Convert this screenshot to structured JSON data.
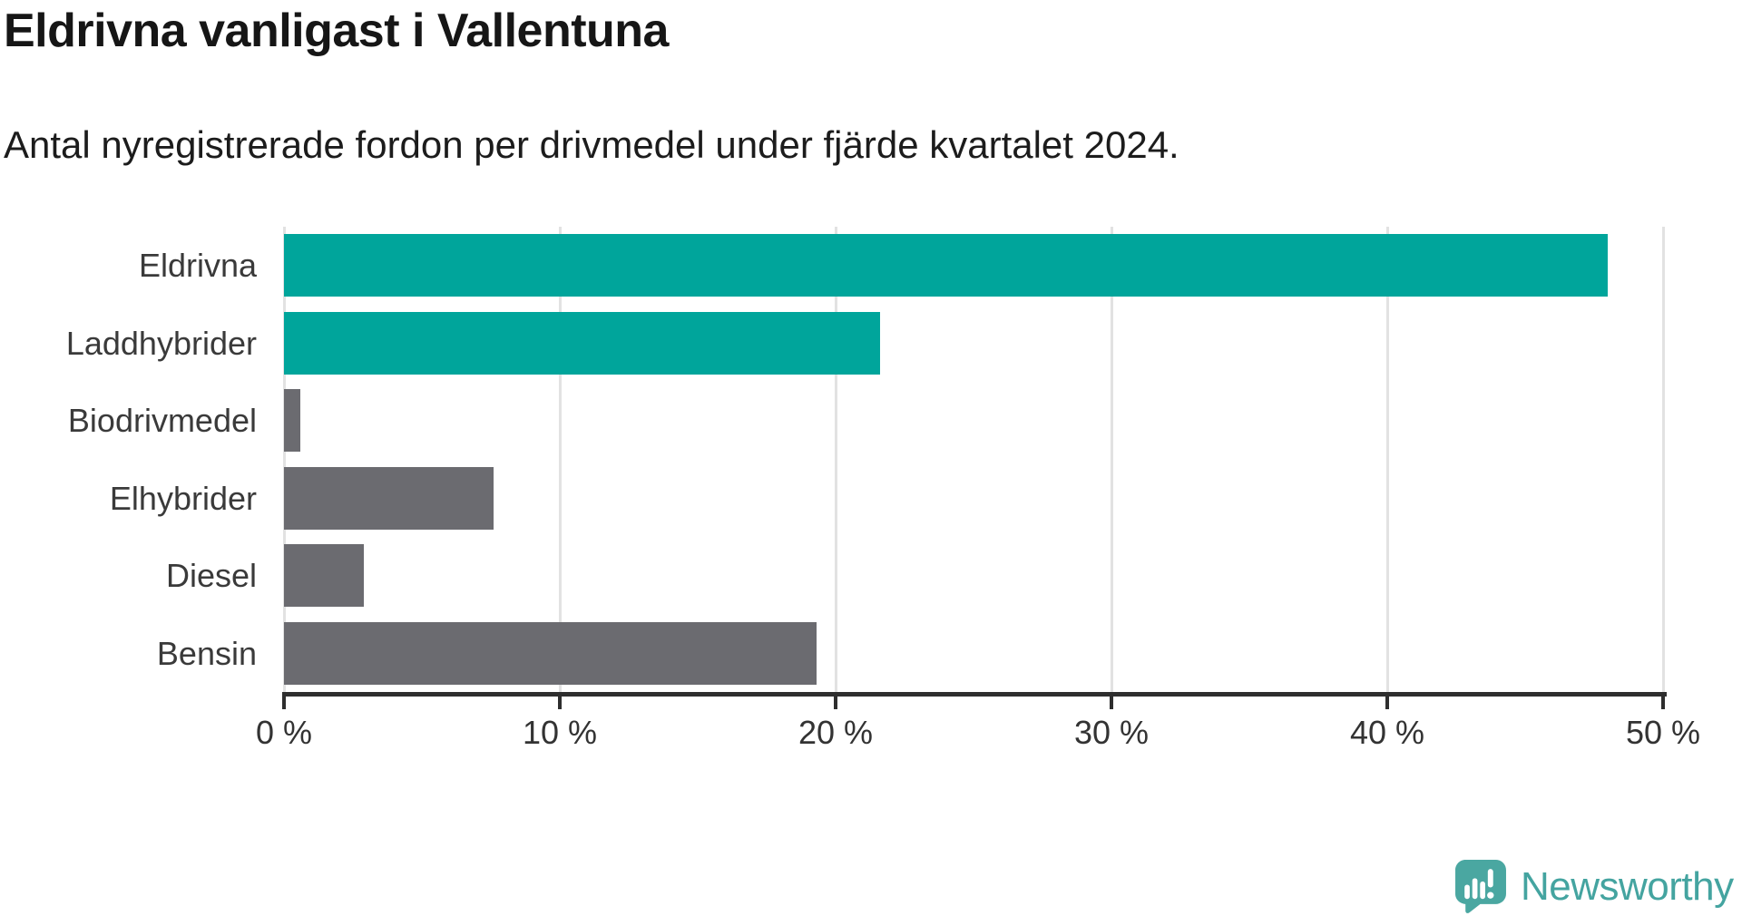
{
  "header": {
    "title": "Eldrivna vanligast i Vallentuna",
    "subtitle": "Antal nyregistrerade fordon per drivmedel under fjärde kvartalet 2024."
  },
  "chart_data": {
    "type": "bar",
    "orientation": "horizontal",
    "title": "Eldrivna vanligast i Vallentuna",
    "subtitle": "Antal nyregistrerade fordon per drivmedel under fjärde kvartalet 2024.",
    "categories": [
      "Eldrivna",
      "Laddhybrider",
      "Biodrivmedel",
      "Elhybrider",
      "Diesel",
      "Bensin"
    ],
    "values": [
      48.0,
      21.6,
      0.6,
      7.6,
      2.9,
      19.3
    ],
    "unit": "%",
    "xlim": [
      0,
      50
    ],
    "x_ticks": [
      0,
      10,
      20,
      30,
      40,
      50
    ],
    "x_tick_labels": [
      "0 %",
      "10 %",
      "20 %",
      "30 %",
      "40 %",
      "50 %"
    ],
    "grid": true,
    "legend": "none",
    "colors": [
      "#00a59b",
      "#00a59b",
      "#6b6b70",
      "#6b6b70",
      "#6b6b70",
      "#6b6b70"
    ],
    "highlight_color": "#00a59b",
    "default_color": "#6b6b70",
    "gridline_color": "#e2e2e2",
    "axis_color": "#2e2e2e"
  },
  "footer": {
    "brand_name": "Newsworthy",
    "brand_color": "#44a4a0",
    "logo_icon": "bar-chart-speech-bubble"
  }
}
